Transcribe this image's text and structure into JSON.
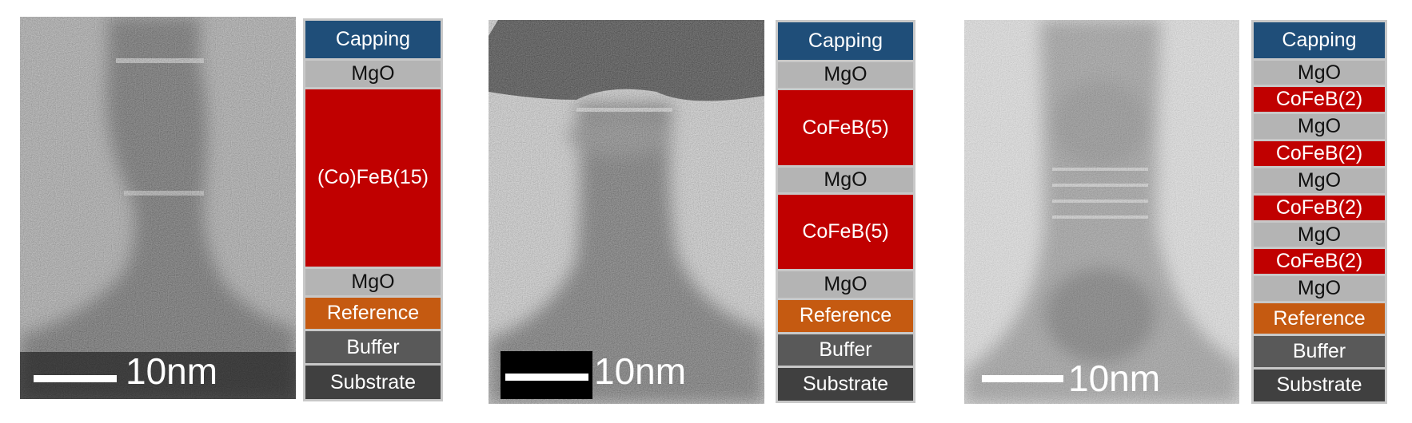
{
  "panels": [
    {
      "scale_bar": "10nm",
      "layers": [
        "Capping",
        "MgO",
        "(Co)FeB(15)",
        "MgO",
        "Reference",
        "Buffer",
        "Substrate"
      ]
    },
    {
      "scale_bar": "10nm",
      "layers": [
        "Capping",
        "MgO",
        "CoFeB(5)",
        "MgO",
        "CoFeB(5)",
        "MgO",
        "Reference",
        "Buffer",
        "Substrate"
      ]
    },
    {
      "scale_bar": "10nm",
      "layers": [
        "Capping",
        "MgO",
        "CoFeB(2)",
        "MgO",
        "CoFeB(2)",
        "MgO",
        "CoFeB(2)",
        "MgO",
        "CoFeB(2)",
        "MgO",
        "Reference",
        "Buffer",
        "Substrate"
      ]
    }
  ]
}
